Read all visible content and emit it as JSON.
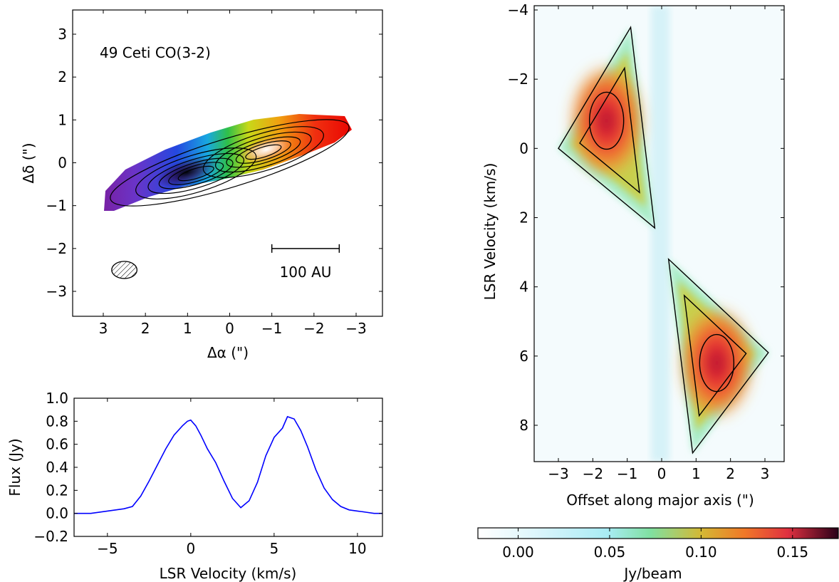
{
  "chart_data": [
    {
      "type": "heatmap",
      "panel": "moment-1 velocity map",
      "annotation": "49 Ceti CO(3-2)",
      "xlabel": "Δα (\")",
      "ylabel": "Δδ (\")",
      "xlim": [
        3.0,
        -3.4
      ],
      "ylim": [
        -3.6,
        3.6
      ],
      "xticks": [
        3,
        2,
        1,
        0,
        -1,
        -2,
        -3
      ],
      "xtick_labels": [
        "3",
        "2",
        "1",
        "0",
        "−1",
        "−2",
        "−3"
      ],
      "yticks": [
        3,
        2,
        1,
        0,
        -1,
        -2,
        -3
      ],
      "ytick_labels": [
        "3",
        "2",
        "1",
        "0",
        "−1",
        "−2",
        "−3"
      ],
      "colormap": "velocity rainbow (purple → blue → green → yellow → red)",
      "disk": {
        "center": [
          0.0,
          0.0
        ],
        "position_angle_deg": -17,
        "semi_major": 3.0,
        "semi_minor": 0.55
      },
      "emission_peaks": [
        [
          0.8,
          -0.25
        ],
        [
          -0.8,
          0.25
        ]
      ],
      "scale_bar": {
        "label": "100 AU",
        "x_from": -1.0,
        "x_to": -2.6,
        "y": -2.0
      },
      "beam": {
        "center": [
          2.5,
          -2.5
        ],
        "semi_major": 0.3,
        "semi_minor": 0.2
      }
    },
    {
      "type": "line",
      "panel": "spectrum",
      "xlabel": "LSR Velocity (km/s)",
      "ylabel": "Flux (Jy)",
      "xlim": [
        -7.0,
        11.5
      ],
      "ylim": [
        -0.2,
        1.0
      ],
      "xticks": [
        -5,
        0,
        5,
        10
      ],
      "xtick_labels": [
        "−5",
        "0",
        "5",
        "10"
      ],
      "yticks": [
        -0.2,
        0.0,
        0.2,
        0.4,
        0.6,
        0.8,
        1.0
      ],
      "ytick_labels": [
        "−0.2",
        "0.0",
        "0.2",
        "0.4",
        "0.6",
        "0.8",
        "1.0"
      ],
      "line_color": "#0000ff",
      "series": [
        {
          "x": [
            -7.0,
            -6.0,
            -5.0,
            -4.0,
            -3.5,
            -3.0,
            -2.5,
            -2.0,
            -1.5,
            -1.0,
            -0.5,
            -0.2,
            0.0,
            0.3,
            0.6,
            1.0,
            1.5,
            2.0,
            2.5,
            3.0,
            3.5,
            4.0,
            4.5,
            5.0,
            5.5,
            5.8,
            6.2,
            6.6,
            7.0,
            7.5,
            8.0,
            8.5,
            9.0,
            9.5,
            10.0,
            10.5,
            11.0,
            11.5
          ],
          "y": [
            0.0,
            0.0,
            0.02,
            0.04,
            0.06,
            0.15,
            0.28,
            0.42,
            0.56,
            0.68,
            0.76,
            0.8,
            0.81,
            0.76,
            0.68,
            0.56,
            0.44,
            0.28,
            0.13,
            0.05,
            0.11,
            0.27,
            0.5,
            0.66,
            0.74,
            0.84,
            0.82,
            0.72,
            0.58,
            0.38,
            0.22,
            0.12,
            0.06,
            0.03,
            0.02,
            0.01,
            0.0,
            0.0
          ]
        }
      ]
    },
    {
      "type": "heatmap",
      "panel": "position-velocity diagram",
      "xlabel": "Offset along major axis (\")",
      "ylabel": "LSR Velocity (km/s)",
      "xlim": [
        -3.8,
        3.5
      ],
      "ylim": [
        9.0,
        -4.2
      ],
      "xticks": [
        -3,
        -2,
        -1,
        0,
        1,
        2,
        3
      ],
      "xtick_labels": [
        "−3",
        "−2",
        "−1",
        "0",
        "1",
        "2",
        "3"
      ],
      "yticks": [
        -4,
        -2,
        0,
        2,
        4,
        6,
        8
      ],
      "ytick_labels": [
        "−4",
        "−2",
        "0",
        "2",
        "4",
        "6",
        "8"
      ],
      "lobes": [
        {
          "vertices": [
            [
              -3.0,
              0.0
            ],
            [
              -0.9,
              -3.5
            ],
            [
              -0.2,
              2.3
            ]
          ],
          "peak": [
            -1.6,
            -0.8
          ],
          "peak_velocity_sign": "blue-shifted"
        },
        {
          "vertices": [
            [
              3.1,
              5.9
            ],
            [
              0.9,
              8.8
            ],
            [
              0.2,
              3.2
            ]
          ],
          "peak": [
            1.6,
            6.2
          ],
          "peak_velocity_sign": "red-shifted"
        }
      ]
    },
    {
      "type": "colorbar",
      "label": "Jy/beam",
      "range": [
        -0.022,
        0.175
      ],
      "ticks": [
        0.0,
        0.05,
        0.1,
        0.15
      ],
      "tick_labels": [
        "0.00",
        "0.05",
        "0.10",
        "0.15"
      ],
      "colors": [
        "#ffffff",
        "#b4ecf6",
        "#7ee0a0",
        "#d8b83a",
        "#f0702a",
        "#e0283a",
        "#2a0018"
      ]
    }
  ]
}
